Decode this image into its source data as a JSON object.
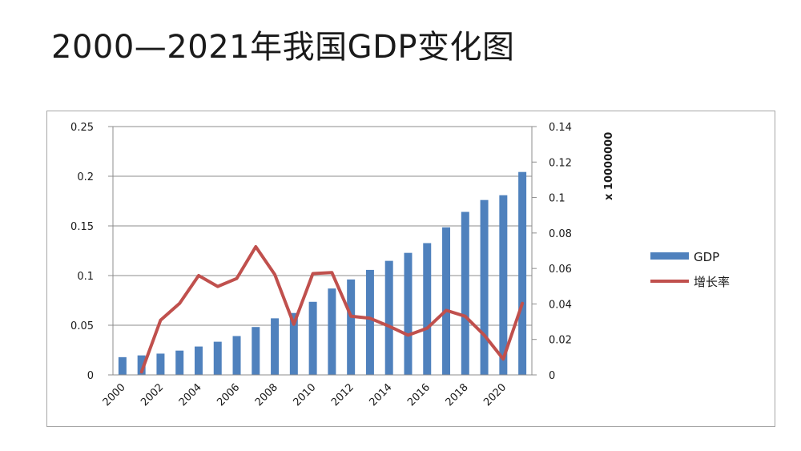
{
  "title": "2000—2021年我国GDP变化图",
  "chart_data": {
    "type": "bar",
    "x": [
      2000,
      2001,
      2002,
      2003,
      2004,
      2005,
      2006,
      2007,
      2008,
      2009,
      2010,
      2011,
      2012,
      2013,
      2014,
      2015,
      2016,
      2017,
      2018,
      2019,
      2020,
      2021
    ],
    "x_tick_labels": [
      "2000",
      "2002",
      "2004",
      "2006",
      "2008",
      "2010",
      "2012",
      "2014",
      "2016",
      "2018",
      "2020"
    ],
    "series": [
      {
        "name": "GDP",
        "type": "bar",
        "axis": "right",
        "color": "#4f81bd",
        "values": [
          0.01,
          0.011,
          0.012,
          0.0137,
          0.016,
          0.0187,
          0.0219,
          0.027,
          0.0319,
          0.0349,
          0.0412,
          0.0487,
          0.0538,
          0.0592,
          0.0643,
          0.0688,
          0.0743,
          0.0832,
          0.0919,
          0.0986,
          0.1013,
          0.1144
        ]
      },
      {
        "name": "增长率",
        "type": "line",
        "axis": "left",
        "color": "#c0504d",
        "values": [
          null,
          0.003,
          0.055,
          0.072,
          0.1,
          0.089,
          0.097,
          0.129,
          0.101,
          0.051,
          0.102,
          0.103,
          0.059,
          0.057,
          0.049,
          0.04,
          0.047,
          0.065,
          0.059,
          0.04,
          0.016,
          0.072
        ]
      }
    ],
    "y_left": {
      "ticks": [
        "0",
        "0.05",
        "0.1",
        "0.15",
        "0.2",
        "0.25"
      ],
      "ylim": [
        0,
        0.25
      ]
    },
    "y_right": {
      "ticks": [
        "0",
        "0.02",
        "0.04",
        "0.06",
        "0.08",
        "0.1",
        "0.12",
        "0.14"
      ],
      "ylim": [
        0,
        0.14
      ],
      "label": "x 10000000"
    },
    "legend": {
      "position": "right",
      "entries": [
        "GDP",
        "增长率"
      ]
    },
    "grid": "horizontal"
  }
}
